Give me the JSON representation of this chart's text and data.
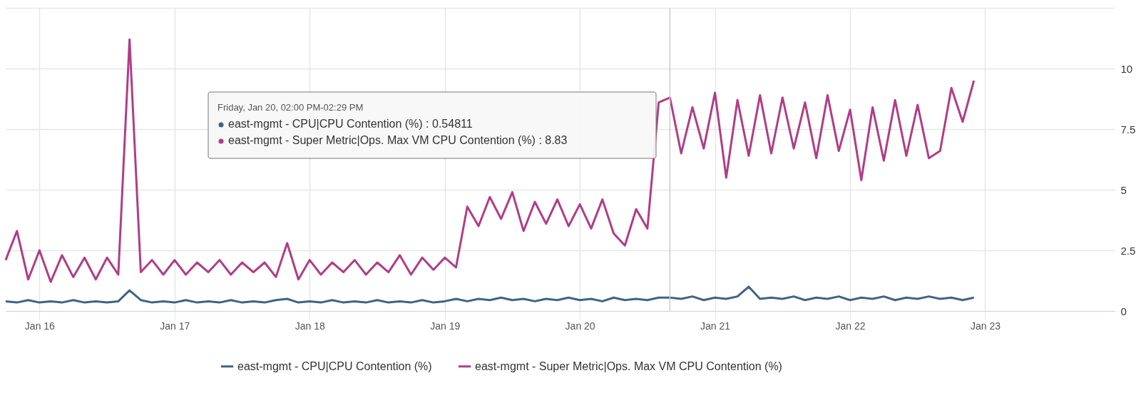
{
  "chart_data": {
    "type": "line",
    "x": [
      "--01-15T18:00",
      "--01-15T20:00",
      "--01-15T22:00",
      "--01-16T00:00",
      "--01-16T02:00",
      "--01-16T04:00",
      "--01-16T06:00",
      "--01-16T08:00",
      "--01-16T10:00",
      "--01-16T12:00",
      "--01-16T14:00",
      "--01-16T16:00",
      "--01-16T18:00",
      "--01-16T20:00",
      "--01-16T22:00",
      "--01-17T00:00",
      "--01-17T02:00",
      "--01-17T04:00",
      "--01-17T06:00",
      "--01-17T08:00",
      "--01-17T10:00",
      "--01-17T12:00",
      "--01-17T14:00",
      "--01-17T16:00",
      "--01-17T18:00",
      "--01-17T20:00",
      "--01-17T22:00",
      "--01-18T00:00",
      "--01-18T02:00",
      "--01-18T04:00",
      "--01-18T06:00",
      "--01-18T08:00",
      "--01-18T10:00",
      "--01-18T12:00",
      "--01-18T14:00",
      "--01-18T16:00",
      "--01-18T18:00",
      "--01-18T20:00",
      "--01-18T22:00",
      "--01-19T00:00",
      "--01-19T02:00",
      "--01-19T04:00",
      "--01-19T06:00",
      "--01-19T08:00",
      "--01-19T10:00",
      "--01-19T12:00",
      "--01-19T14:00",
      "--01-19T16:00",
      "--01-19T18:00",
      "--01-19T20:00",
      "--01-19T22:00",
      "--01-20T00:00",
      "--01-20T02:00",
      "--01-20T04:00",
      "--01-20T06:00",
      "--01-20T08:00",
      "--01-20T10:00",
      "--01-20T12:00",
      "--01-20T14:00",
      "--01-20T16:00",
      "--01-20T18:00",
      "--01-20T20:00",
      "--01-20T22:00",
      "--01-21T00:00",
      "--01-21T02:00",
      "--01-21T04:00",
      "--01-21T06:00",
      "--01-21T08:00",
      "--01-21T10:00",
      "--01-21T12:00",
      "--01-21T14:00",
      "--01-21T16:00",
      "--01-21T18:00",
      "--01-21T20:00",
      "--01-21T22:00",
      "--01-22T00:00",
      "--01-22T02:00",
      "--01-22T04:00",
      "--01-22T06:00",
      "--01-22T08:00",
      "--01-22T10:00",
      "--01-22T12:00",
      "--01-22T14:00",
      "--01-22T16:00",
      "--01-22T18:00",
      "--01-22T20:00",
      "--01-22T22:00"
    ],
    "series": [
      {
        "name": "east-mgmt - CPU|CPU Contention (%)",
        "color": "#3e6485",
        "values": [
          0.4,
          0.35,
          0.45,
          0.35,
          0.4,
          0.35,
          0.45,
          0.35,
          0.4,
          0.35,
          0.4,
          0.85,
          0.45,
          0.35,
          0.4,
          0.35,
          0.45,
          0.35,
          0.4,
          0.35,
          0.45,
          0.35,
          0.4,
          0.35,
          0.45,
          0.5,
          0.35,
          0.4,
          0.35,
          0.45,
          0.35,
          0.4,
          0.35,
          0.45,
          0.35,
          0.4,
          0.35,
          0.45,
          0.35,
          0.4,
          0.5,
          0.4,
          0.5,
          0.45,
          0.55,
          0.45,
          0.5,
          0.4,
          0.5,
          0.45,
          0.55,
          0.45,
          0.5,
          0.4,
          0.55,
          0.45,
          0.5,
          0.45,
          0.55,
          0.55,
          0.5,
          0.6,
          0.45,
          0.55,
          0.5,
          0.6,
          1.0,
          0.5,
          0.55,
          0.5,
          0.6,
          0.45,
          0.55,
          0.5,
          0.6,
          0.45,
          0.55,
          0.5,
          0.6,
          0.45,
          0.55,
          0.5,
          0.6,
          0.5,
          0.55,
          0.45,
          0.55
        ]
      },
      {
        "name": "east-mgmt - Super Metric|Ops. Max VM CPU Contention (%)",
        "color": "#b03d87",
        "values": [
          2.1,
          3.3,
          1.3,
          2.5,
          1.2,
          2.3,
          1.4,
          2.2,
          1.3,
          2.2,
          1.5,
          11.2,
          1.6,
          2.1,
          1.5,
          2.1,
          1.5,
          2.0,
          1.6,
          2.1,
          1.5,
          2.0,
          1.6,
          2.0,
          1.4,
          2.8,
          1.3,
          2.1,
          1.5,
          2.0,
          1.6,
          2.1,
          1.5,
          2.0,
          1.6,
          2.3,
          1.5,
          2.2,
          1.7,
          2.2,
          1.8,
          4.3,
          3.5,
          4.7,
          3.8,
          4.9,
          3.3,
          4.5,
          3.6,
          4.6,
          3.5,
          4.4,
          3.4,
          4.6,
          3.2,
          2.7,
          4.2,
          3.4,
          8.6,
          8.8,
          6.5,
          8.4,
          6.7,
          9.0,
          5.5,
          8.7,
          6.4,
          8.9,
          6.5,
          8.8,
          6.7,
          8.6,
          6.3,
          8.9,
          6.6,
          8.3,
          5.4,
          8.4,
          6.2,
          8.7,
          6.4,
          8.5,
          6.3,
          6.6,
          9.2,
          7.8,
          9.5
        ]
      }
    ],
    "xlim": [
      "--01-15T18:00",
      "--01-23T23:00"
    ],
    "xticks": [
      {
        "value": "--01-16",
        "label": "Jan 16"
      },
      {
        "value": "--01-17",
        "label": "Jan 17"
      },
      {
        "value": "--01-18",
        "label": "Jan 18"
      },
      {
        "value": "--01-19",
        "label": "Jan 19"
      },
      {
        "value": "--01-20",
        "label": "Jan 20"
      },
      {
        "value": "--01-21",
        "label": "Jan 21"
      },
      {
        "value": "--01-22",
        "label": "Jan 22"
      },
      {
        "value": "--01-23",
        "label": "Jan 23"
      }
    ],
    "ylim": [
      0,
      12.5
    ],
    "yticks": [
      0,
      2.5,
      5,
      7.5,
      10,
      {
        "value": 12.5,
        "label": null
      }
    ],
    "grid": true,
    "legend": "bottom",
    "line_style": "solid",
    "ref_lines": [
      {
        "axis": "x",
        "value": "--01-20T16:00",
        "color": "#cccccc"
      }
    ],
    "annotations": [
      "Friday, Jan 20, 02:00 PM-02:29 PM",
      "east-mgmt - CPU|CPU Contention (%) : 0.54811",
      "east-mgmt - Super Metric|Ops. Max VM CPU Contention (%) : 8.83"
    ]
  }
}
